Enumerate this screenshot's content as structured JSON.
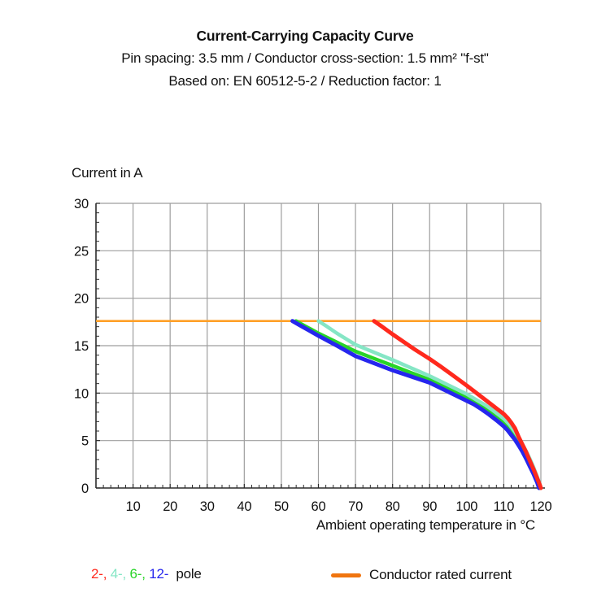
{
  "header": {
    "title": "Current-Carrying Capacity Curve",
    "subtitle1": "Pin spacing: 3.5 mm / Conductor cross-section: 1.5 mm² \"f-st\"",
    "subtitle2": "Based on: EN 60512-5-2 / Reduction factor: 1"
  },
  "chart_data": {
    "type": "line",
    "title": "Current-Carrying Capacity Curve",
    "xlabel": "Ambient operating temperature in °C",
    "ylabel": "Current in A",
    "xlim": [
      0,
      120
    ],
    "ylim": [
      0,
      30
    ],
    "x_ticks": [
      10,
      20,
      30,
      40,
      50,
      60,
      70,
      80,
      90,
      100,
      110,
      120
    ],
    "y_ticks": [
      0,
      5,
      10,
      15,
      20,
      25,
      30
    ],
    "minor_x_step": 2,
    "minor_y_step": 1,
    "grid": true,
    "grid_color": "#9E9E9E",
    "axis_color": "#2B2B2B",
    "rated_current": {
      "value": 17.6,
      "color": "#FFA028",
      "label": "Conductor rated current"
    },
    "draw_order": [
      "6-pole",
      "4-pole",
      "12-pole",
      "2-pole"
    ],
    "series": [
      {
        "name": "2-pole",
        "color": "#FF291D",
        "width": 5,
        "points": [
          [
            75,
            17.6
          ],
          [
            77,
            17.05
          ],
          [
            80,
            16.2
          ],
          [
            83,
            15.4
          ],
          [
            86,
            14.6
          ],
          [
            90,
            13.6
          ],
          [
            93,
            12.8
          ],
          [
            96,
            11.95
          ],
          [
            100,
            10.8
          ],
          [
            103,
            9.9
          ],
          [
            105,
            9.3
          ],
          [
            107,
            8.7
          ],
          [
            108.5,
            8.25
          ],
          [
            110,
            7.8
          ],
          [
            111,
            7.4
          ],
          [
            112,
            6.9
          ],
          [
            113,
            6.3
          ],
          [
            114,
            5.4
          ],
          [
            115,
            4.6
          ],
          [
            116,
            3.8
          ],
          [
            117,
            2.9
          ],
          [
            118,
            2.0
          ],
          [
            119,
            1.05
          ],
          [
            119.7,
            0.35
          ],
          [
            120,
            0
          ]
        ]
      },
      {
        "name": "4-pole",
        "color": "#85E6C5",
        "width": 4.5,
        "points": [
          [
            60,
            17.6
          ],
          [
            62,
            17.1
          ],
          [
            65,
            16.3
          ],
          [
            70,
            15.1
          ],
          [
            75,
            14.3
          ],
          [
            80,
            13.5
          ],
          [
            85,
            12.65
          ],
          [
            90,
            11.8
          ],
          [
            95,
            10.85
          ],
          [
            100,
            9.9
          ],
          [
            103,
            9.2
          ],
          [
            105,
            8.75
          ],
          [
            107,
            8.2
          ],
          [
            109,
            7.6
          ],
          [
            110,
            7.3
          ],
          [
            111.5,
            6.7
          ],
          [
            113,
            5.9
          ],
          [
            114,
            5.3
          ],
          [
            115,
            4.65
          ],
          [
            116,
            3.9
          ],
          [
            117,
            3.1
          ],
          [
            118,
            2.2
          ],
          [
            119,
            1.2
          ],
          [
            119.8,
            0.3
          ],
          [
            120,
            0
          ]
        ]
      },
      {
        "name": "6-pole",
        "color": "#28D428",
        "width": 4.5,
        "points": [
          [
            54,
            17.6
          ],
          [
            56,
            17.15
          ],
          [
            60,
            16.3
          ],
          [
            65,
            15.35
          ],
          [
            70,
            14.4
          ],
          [
            75,
            13.65
          ],
          [
            80,
            12.9
          ],
          [
            85,
            12.15
          ],
          [
            90,
            11.4
          ],
          [
            95,
            10.5
          ],
          [
            100,
            9.6
          ],
          [
            103,
            8.95
          ],
          [
            105,
            8.5
          ],
          [
            107,
            7.95
          ],
          [
            109,
            7.35
          ],
          [
            110,
            7.0
          ],
          [
            111,
            6.6
          ],
          [
            112.5,
            5.9
          ],
          [
            113.5,
            5.3
          ],
          [
            114.5,
            4.7
          ],
          [
            115.5,
            4.0
          ],
          [
            116.5,
            3.2
          ],
          [
            117.5,
            2.4
          ],
          [
            118.5,
            1.5
          ],
          [
            119.3,
            0.6
          ],
          [
            119.7,
            0
          ]
        ]
      },
      {
        "name": "12-pole",
        "color": "#2626EE",
        "width": 5,
        "points": [
          [
            53,
            17.6
          ],
          [
            55,
            17.15
          ],
          [
            60,
            16.05
          ],
          [
            65,
            15.0
          ],
          [
            70,
            13.9
          ],
          [
            75,
            13.15
          ],
          [
            80,
            12.4
          ],
          [
            85,
            11.75
          ],
          [
            90,
            11.1
          ],
          [
            95,
            10.15
          ],
          [
            100,
            9.2
          ],
          [
            102,
            8.8
          ],
          [
            104,
            8.3
          ],
          [
            106,
            7.75
          ],
          [
            108,
            7.15
          ],
          [
            110,
            6.5
          ],
          [
            111,
            6.1
          ],
          [
            112,
            5.6
          ],
          [
            113,
            5.1
          ],
          [
            114,
            4.5
          ],
          [
            115,
            3.85
          ],
          [
            116,
            3.1
          ],
          [
            117,
            2.3
          ],
          [
            118,
            1.5
          ],
          [
            119,
            0.6
          ],
          [
            119.5,
            0
          ]
        ]
      }
    ]
  },
  "legend": {
    "pole_items": [
      {
        "label": "2-,",
        "color": "#FF291D"
      },
      {
        "label": "4-,",
        "color": "#85E6C5"
      },
      {
        "label": "6-,",
        "color": "#28D428"
      },
      {
        "label": "12-",
        "color": "#2626EE"
      }
    ],
    "pole_suffix": "pole",
    "rated_label": "Conductor rated current",
    "rated_color": "#F0750F"
  }
}
